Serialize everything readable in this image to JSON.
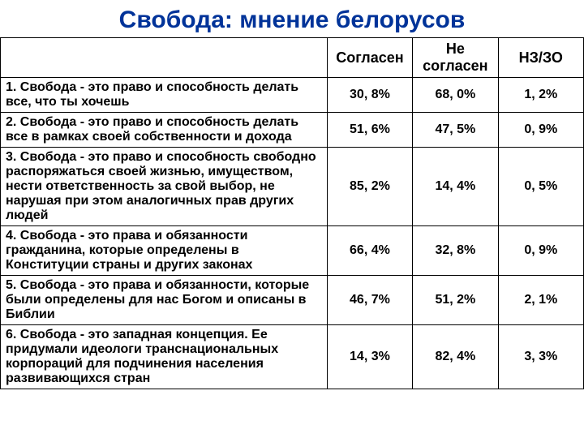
{
  "title": "Свобода: мнение белорусов",
  "title_color": "#003399",
  "title_fontsize": 30,
  "header": {
    "col1": "",
    "col2": "Согласен",
    "col3": "Не согласен",
    "col4": "НЗ/ЗО"
  },
  "header_fontsize": 18,
  "body_fontsize": 16,
  "row_border_color": "#000000",
  "rows": [
    {
      "statement": "1. Свобода - это право и способность делать все, что ты хочешь",
      "agree": "30, 8%",
      "disagree": "68, 0%",
      "dk": "1, 2%"
    },
    {
      "statement": "2. Свобода - это право и способность делать все в рамках своей собственности и дохода",
      "agree": "51, 6%",
      "disagree": "47, 5%",
      "dk": "0, 9%"
    },
    {
      "statement": "3. Свобода - это право и способность свободно распоряжаться своей жизнью, имуществом, нести ответственность за свой выбор, не нарушая при этом аналогичных прав других людей",
      "agree": "85, 2%",
      "disagree": "14, 4%",
      "dk": "0, 5%"
    },
    {
      "statement": "4. Свобода - это права и обязанности гражданина, которые определены в Конституции страны и других законах",
      "agree": "66, 4%",
      "disagree": "32, 8%",
      "dk": "0, 9%"
    },
    {
      "statement": "5. Свобода - это права и обязанности, которые были определены для нас Богом и описаны в Библии",
      "agree": "46, 7%",
      "disagree": "51, 2%",
      "dk": "2, 1%"
    },
    {
      "statement": "6. Свобода - это западная концепция. Ее придумали идеологи транснациональных корпораций для подчинения населения развивающихся стран",
      "agree": "14, 3%",
      "disagree": "82, 4%",
      "dk": "3, 3%"
    }
  ]
}
